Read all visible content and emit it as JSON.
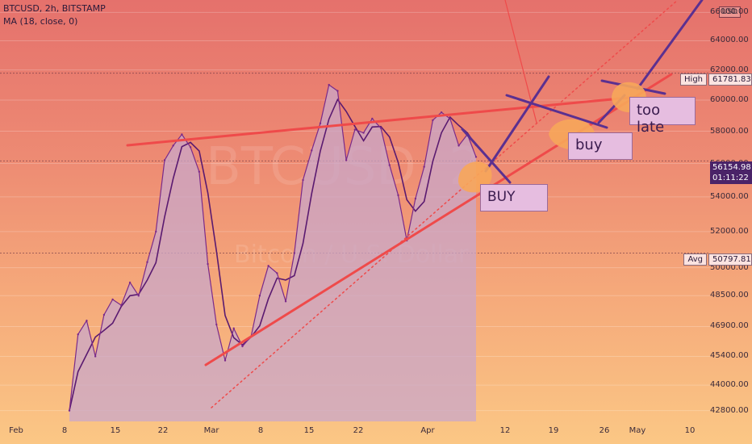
{
  "header": {
    "symbol_line": "BTCUSD, 2h, BITSTAMP",
    "indicator_line": "MA (18, close, 0)"
  },
  "watermark": {
    "ticker": "BTCUSD, 2",
    "description": "Bitcoin / U.S. Dollar"
  },
  "currency_label": "USD",
  "colors": {
    "price": "#7a2a8a",
    "ma": "#5a1a70",
    "area": "#c9a7c9",
    "trend": "#ef4a4a",
    "annotation_line": "#5b3090",
    "marker": "#f7a65a"
  },
  "price_tags": {
    "high": {
      "label": "High",
      "value": "61781.83"
    },
    "avg": {
      "label": "Avg",
      "value": "50797.81"
    },
    "current": {
      "value": "56154.98",
      "countdown": "01:11:22"
    }
  },
  "notes": {
    "buy_big": "BUY",
    "buy_small": "buy",
    "too_late": "too late"
  },
  "chart_data": {
    "type": "line",
    "title": "",
    "xlabel": "",
    "ylabel": "",
    "y_scale": "log",
    "ylim": [
      42300,
      66900
    ],
    "x_ticks": [
      "Feb",
      "8",
      "15",
      "22",
      "Mar",
      "8",
      "15",
      "22",
      "Apr",
      "12",
      "19",
      "26",
      "May",
      "10"
    ],
    "y_ticks": [
      66000,
      64000,
      62000,
      60000,
      58000,
      56000,
      54000,
      52000,
      50000,
      48500,
      46900,
      45400,
      44000,
      42800
    ],
    "grid": true,
    "series": [
      {
        "values": [
          42800,
          46500,
          47200,
          45400,
          47500,
          48300,
          48000,
          49200,
          48500,
          50300,
          52000,
          56200,
          57100,
          57800,
          57000,
          55500,
          50200,
          47000,
          45200,
          46800,
          45900,
          46400,
          48500,
          50100,
          49700,
          48200,
          50800,
          55000,
          56800,
          58500,
          61000,
          60600,
          56200,
          58100,
          57900,
          58800,
          58200,
          55900,
          54100,
          51500,
          53900,
          55800,
          58700,
          59200,
          58800,
          57100,
          57800,
          56400
        ]
      }
    ]
  }
}
